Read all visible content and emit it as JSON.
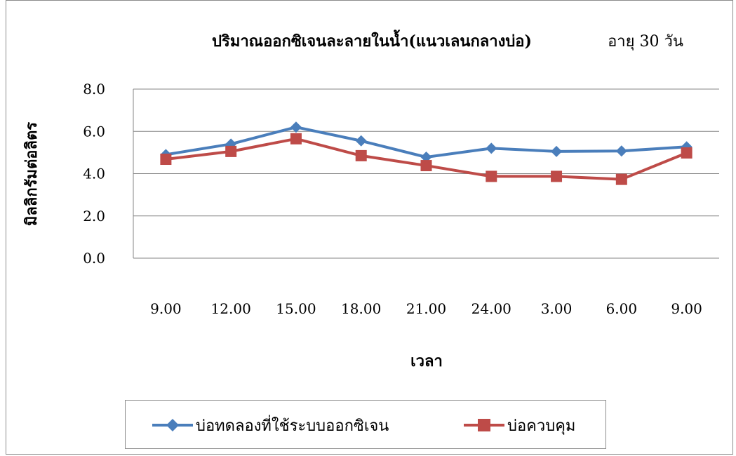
{
  "chart_data": {
    "type": "line",
    "title": "ปริมาณออกซิเจนละลายในน้ำ(แนวเลนกลางบ่อ)",
    "subtitle": "อายุ 30 วัน",
    "xlabel": "เวลา",
    "ylabel": "มิลลิกรัมต่อลิตร",
    "categories": [
      "9.00",
      "12.00",
      "15.00",
      "18.00",
      "21.00",
      "24.00",
      "3.00",
      "6.00",
      "9.00"
    ],
    "yticks": [
      "0.0",
      "2.0",
      "4.0",
      "6.0",
      "8.0"
    ],
    "ylim": [
      0,
      8
    ],
    "grid": true,
    "legend": "bottom",
    "series": [
      {
        "name": "บ่อทดลองที่ใช้ระบบออกซิเจน",
        "color": "#4a7ebb",
        "marker": "diamond",
        "values": [
          4.9,
          5.4,
          6.2,
          5.55,
          4.78,
          5.2,
          5.05,
          5.07,
          5.27
        ]
      },
      {
        "name": "บ่อควบคุม",
        "color": "#be4b48",
        "marker": "square",
        "values": [
          4.68,
          5.05,
          5.65,
          4.85,
          4.38,
          3.87,
          3.87,
          3.73,
          4.98
        ]
      }
    ]
  }
}
